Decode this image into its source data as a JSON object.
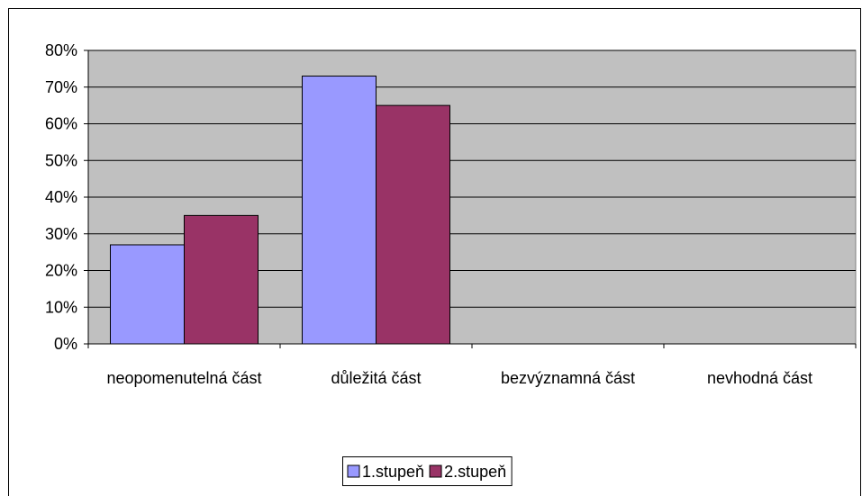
{
  "chart_data": {
    "type": "bar",
    "categories": [
      "neopomenutelná část",
      "důležitá část",
      "bezvýznamná část",
      "nevhodná část"
    ],
    "series": [
      {
        "name": "1.stupeň",
        "color": "#9999ff",
        "values": [
          27,
          73,
          0,
          0
        ]
      },
      {
        "name": "2.stupeň",
        "color": "#993366",
        "values": [
          35,
          65,
          0,
          0
        ]
      }
    ],
    "ylim": [
      0,
      80
    ],
    "yticks": [
      {
        "value": 0,
        "label": "0%"
      },
      {
        "value": 10,
        "label": "10%"
      },
      {
        "value": 20,
        "label": "20%"
      },
      {
        "value": 30,
        "label": "30%"
      },
      {
        "value": 40,
        "label": "40%"
      },
      {
        "value": 50,
        "label": "50%"
      },
      {
        "value": 60,
        "label": "60%"
      },
      {
        "value": 70,
        "label": "70%"
      },
      {
        "value": 80,
        "label": "80%"
      }
    ],
    "grid": true,
    "legend": "bottom",
    "plot_background": "#c0c0c0"
  }
}
